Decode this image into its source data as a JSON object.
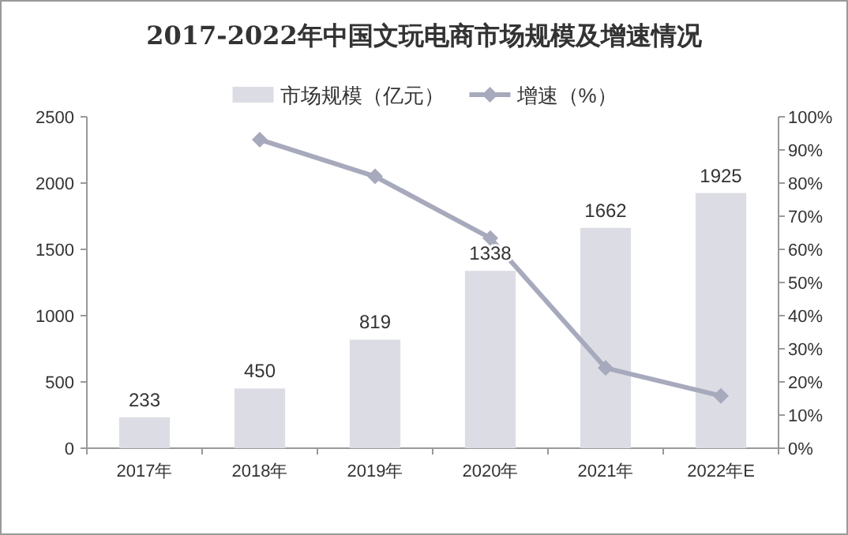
{
  "chart_data": {
    "type": "bar",
    "title": "2017-2022年中国文玩电商市场规模及增速情况",
    "categories": [
      "2017年",
      "2018年",
      "2019年",
      "2020年",
      "2021年",
      "2022年E"
    ],
    "series": [
      {
        "name": "市场规模（亿元）",
        "color": "#dcdde4",
        "values": [
          233,
          450,
          819,
          1338,
          1662,
          1925
        ],
        "value_labels": [
          "233",
          "450",
          "819",
          "1338",
          "1662",
          "1925"
        ]
      },
      {
        "name": "增速（%）",
        "type": "line",
        "axis": "y2",
        "color": "#a7a9bc",
        "marker": "diamond",
        "values": [
          null,
          93.1,
          82.0,
          63.4,
          24.2,
          15.8
        ]
      }
    ],
    "ylim": [
      0,
      2500
    ],
    "yticks": [
      0,
      500,
      1000,
      1500,
      2000,
      2500
    ],
    "y2lim": [
      0,
      100
    ],
    "y2ticks": [
      {
        "value": 0,
        "label": "0%"
      },
      {
        "value": 10,
        "label": "10%"
      },
      {
        "value": 20,
        "label": "20%"
      },
      {
        "value": 30,
        "label": "30%"
      },
      {
        "value": 40,
        "label": "40%"
      },
      {
        "value": 50,
        "label": "50%"
      },
      {
        "value": 60,
        "label": "60%"
      },
      {
        "value": 70,
        "label": "70%"
      },
      {
        "value": 80,
        "label": "80%"
      },
      {
        "value": 90,
        "label": "90%"
      },
      {
        "value": 100,
        "label": "100%"
      }
    ],
    "grid": false,
    "legend": "top"
  }
}
